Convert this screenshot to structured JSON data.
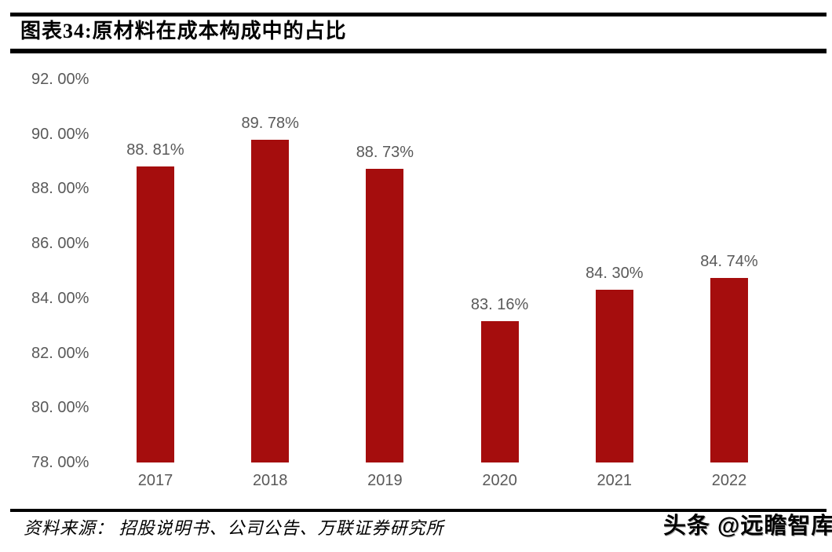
{
  "header": {
    "title": "图表34:原材料在成本构成中的占比"
  },
  "chart_data": {
    "type": "bar",
    "title": "原材料在成本构成中的占比",
    "categories": [
      "2017",
      "2018",
      "2019",
      "2020",
      "2021",
      "2022"
    ],
    "values": [
      88.81,
      89.78,
      88.73,
      83.16,
      84.3,
      84.74
    ],
    "value_labels": [
      "88. 81%",
      "89. 78%",
      "88. 73%",
      "83. 16%",
      "84. 30%",
      "84. 74%"
    ],
    "y_tick_labels": [
      "92. 00%",
      "90. 00%",
      "88. 00%",
      "86. 00%",
      "84. 00%",
      "82. 00%",
      "80. 00%",
      "78. 00%"
    ],
    "y_tick_values": [
      92,
      90,
      88,
      86,
      84,
      82,
      80,
      78
    ],
    "ylim": [
      78,
      92
    ],
    "xlabel": "",
    "ylabel": "",
    "grid": false,
    "legend": "none",
    "bar_color": "#A50D0D",
    "axis_text_color": "#595959"
  },
  "footer": {
    "source": "资料来源： 招股说明书、公司公告、万联证券研究所",
    "watermark": "头条 @远瞻智库"
  }
}
